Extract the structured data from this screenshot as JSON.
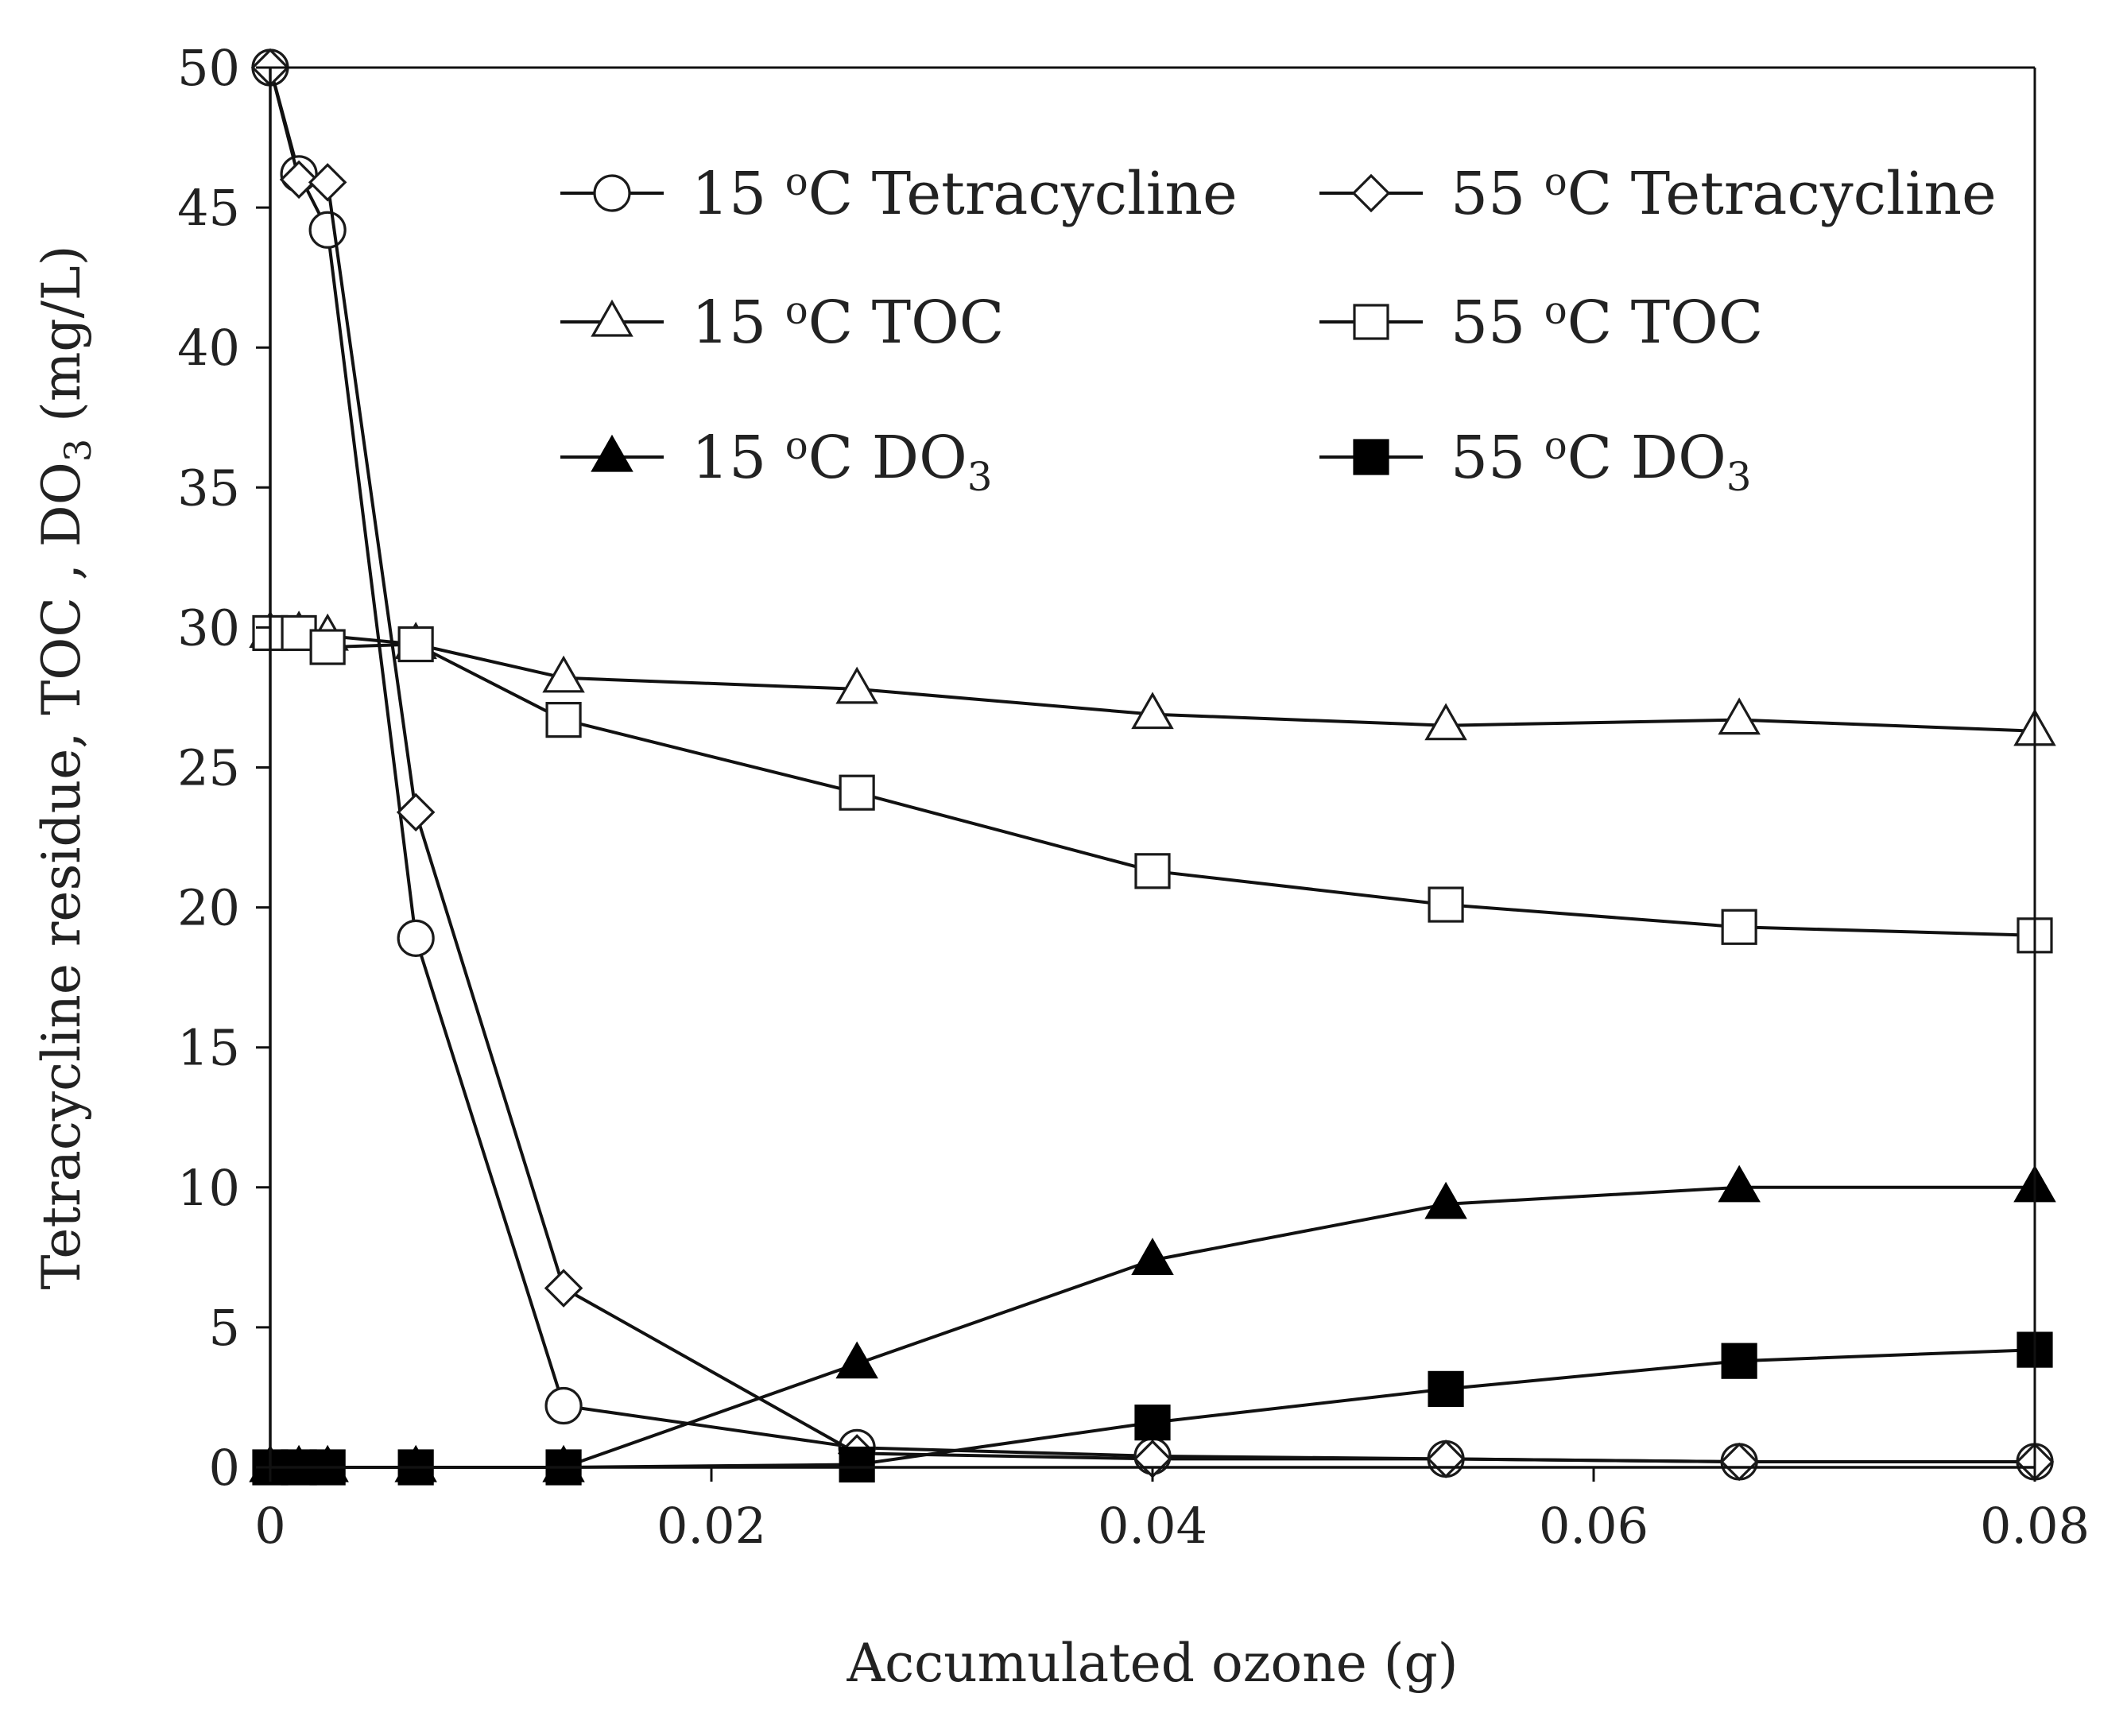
{
  "chart_data": {
    "type": "line",
    "title": "",
    "xlabel": "Accumulated ozone (g)",
    "ylabel": {
      "pre": "Tetracycline residue, TOC , DO",
      "sub": "3",
      "post": " (mg/L)"
    },
    "xlim": [
      0,
      0.08
    ],
    "ylim": [
      0,
      50
    ],
    "x_ticks": [
      0,
      0.02,
      0.04,
      0.06,
      0.08
    ],
    "x_tick_labels": [
      "0",
      "0.02",
      "0.04",
      "0.06",
      "0.08"
    ],
    "y_ticks": [
      0,
      5,
      10,
      15,
      20,
      25,
      30,
      35,
      40,
      45,
      50
    ],
    "y_tick_labels": [
      "0",
      "5",
      "10",
      "15",
      "20",
      "25",
      "30",
      "35",
      "40",
      "45",
      "50"
    ],
    "grid": false,
    "legend_position": "top-right inside",
    "series": [
      {
        "name": "15 oC Tetracycline",
        "label": {
          "num": "15",
          "sup": "o",
          "main": "C Tetracycline",
          "sub": ""
        },
        "marker": "circle",
        "filled": false,
        "color": "#1a1a1a",
        "x": [
          0,
          0.0013,
          0.0026,
          0.0066,
          0.0133,
          0.0266,
          0.04,
          0.0533,
          0.0666,
          0.08
        ],
        "y": [
          50,
          46.2,
          44.2,
          18.9,
          2.2,
          0.7,
          0.4,
          0.3,
          0.2,
          0.2
        ]
      },
      {
        "name": "55 oC Tetracycline",
        "label": {
          "num": "55",
          "sup": "o",
          "main": "C Tetracycline",
          "sub": ""
        },
        "marker": "diamond",
        "filled": false,
        "color": "#1a1a1a",
        "x": [
          0,
          0.0013,
          0.0026,
          0.0066,
          0.0133,
          0.0266,
          0.04,
          0.0533,
          0.0666,
          0.08
        ],
        "y": [
          50,
          46.0,
          45.9,
          23.4,
          6.4,
          0.5,
          0.3,
          0.3,
          0.2,
          0.2
        ]
      },
      {
        "name": "15 oC TOC",
        "label": {
          "num": "15",
          "sup": "o",
          "main": "C TOC",
          "sub": ""
        },
        "marker": "triangle",
        "filled": false,
        "color": "#1a1a1a",
        "x": [
          0,
          0.0013,
          0.0026,
          0.0066,
          0.0133,
          0.0266,
          0.04,
          0.0533,
          0.0666,
          0.08
        ],
        "y": [
          29.8,
          29.8,
          29.7,
          29.4,
          28.2,
          27.8,
          26.9,
          26.5,
          26.7,
          26.3
        ]
      },
      {
        "name": "55 oC TOC",
        "label": {
          "num": "55",
          "sup": "o",
          "main": "C TOC",
          "sub": ""
        },
        "marker": "square",
        "filled": false,
        "color": "#1a1a1a",
        "x": [
          0,
          0.0013,
          0.0026,
          0.0066,
          0.0133,
          0.0266,
          0.04,
          0.0533,
          0.0666,
          0.08
        ],
        "y": [
          29.8,
          29.8,
          29.3,
          29.4,
          26.7,
          24.1,
          21.3,
          20.1,
          19.3,
          19.0
        ]
      },
      {
        "name": "15 oC DO3",
        "label": {
          "num": "15",
          "sup": "o",
          "main": "C DO",
          "sub": "3"
        },
        "marker": "triangle",
        "filled": true,
        "color": "#000000",
        "x": [
          0,
          0.0013,
          0.0026,
          0.0066,
          0.0133,
          0.0266,
          0.04,
          0.0533,
          0.0666,
          0.08
        ],
        "y": [
          0,
          0,
          0,
          0,
          0,
          3.7,
          7.4,
          9.4,
          10.0,
          10.0
        ]
      },
      {
        "name": "55 oC DO3",
        "label": {
          "num": "55",
          "sup": "o",
          "main": "C DO",
          "sub": "3"
        },
        "marker": "square",
        "filled": true,
        "color": "#000000",
        "x": [
          0,
          0.0013,
          0.0026,
          0.0066,
          0.0133,
          0.0266,
          0.04,
          0.0533,
          0.0666,
          0.08
        ],
        "y": [
          0,
          0,
          0,
          0,
          0,
          0.1,
          1.6,
          2.8,
          3.8,
          4.2
        ]
      }
    ]
  }
}
